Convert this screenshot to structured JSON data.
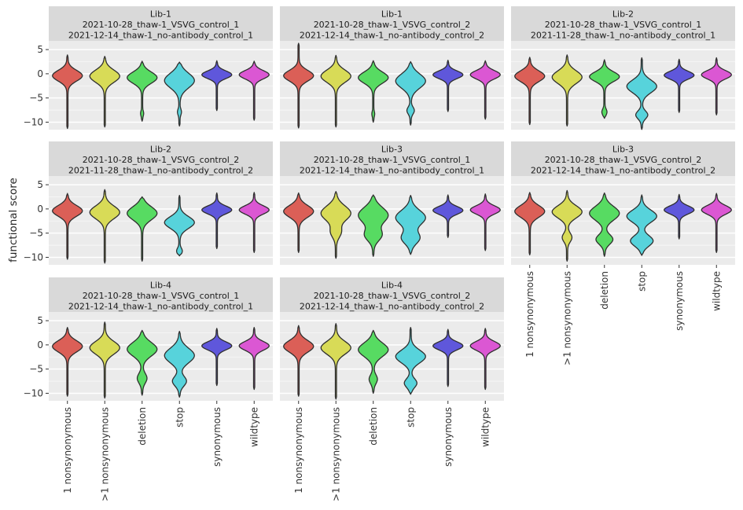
{
  "figure": {
    "ylabel": "functional score"
  },
  "chart_data": {
    "type": "violin",
    "title": "",
    "ylabel": "functional score",
    "xlabel": "",
    "categories": [
      "1 nonsynonymous",
      ">1 nonsynonymous",
      "deletion",
      "stop",
      "synonymous",
      "wildtype"
    ],
    "category_colors": [
      "#db5f57",
      "#d8db57",
      "#57db62",
      "#57d3db",
      "#5f57db",
      "#db57d3"
    ],
    "violin_outline_color": "#2f2f2f",
    "panel_bg": "#ebebeb",
    "strip_bg": "#d9d9d9",
    "grid_color": "#ffffff",
    "yticks": [
      5,
      0,
      -5,
      -10
    ],
    "ytick_labels": [
      "5",
      "0",
      "−5",
      "−10"
    ],
    "yticks_minor": [
      2.5,
      -2.5,
      -7.5
    ],
    "ylim": [
      -11.55,
      6.8
    ],
    "grid_rows": 3,
    "grid_cols": 3,
    "legend": "none",
    "panels": [
      {
        "row": 0,
        "col": 0,
        "strip_lines": [
          "Lib-1",
          "2021-10-28_thaw-1_VSVG_control_1",
          "2021-12-14_thaw-1_no-antibody_control_1"
        ],
        "violins": [
          {
            "category": "1 nonsynonymous",
            "mode": -0.4,
            "spread": 1.1,
            "max": 3.9,
            "min": -11.3,
            "bulge": null
          },
          {
            "category": ">1 nonsynonymous",
            "mode": -0.5,
            "spread": 1.25,
            "max": 3.6,
            "min": -11.0,
            "bulge": null
          },
          {
            "category": "deletion",
            "mode": -0.8,
            "spread": 1.15,
            "max": 2.6,
            "min": -9.8,
            "bulge": {
              "at": -8.2,
              "spread": 0.5,
              "weight": 0.07
            }
          },
          {
            "category": "stop",
            "mode": -1.4,
            "spread": 1.5,
            "max": 2.4,
            "min": -10.8,
            "bulge": {
              "at": -7.9,
              "spread": 0.6,
              "weight": 0.1
            }
          },
          {
            "category": "synonymous",
            "mode": -0.2,
            "spread": 0.78,
            "max": 2.7,
            "min": -7.6,
            "bulge": null
          },
          {
            "category": "wildtype",
            "mode": -0.2,
            "spread": 0.85,
            "max": 2.6,
            "min": -9.6,
            "bulge": null
          }
        ]
      },
      {
        "row": 0,
        "col": 1,
        "strip_lines": [
          "Lib-1",
          "2021-10-28_thaw-1_VSVG_control_2",
          "2021-12-14_thaw-1_no-antibody_control_2"
        ],
        "violins": [
          {
            "category": "1 nonsynonymous",
            "mode": -0.4,
            "spread": 1.1,
            "max": 6.3,
            "min": -11.2,
            "bulge": null
          },
          {
            "category": ">1 nonsynonymous",
            "mode": -0.5,
            "spread": 1.25,
            "max": 3.8,
            "min": -11.0,
            "bulge": null
          },
          {
            "category": "deletion",
            "mode": -0.8,
            "spread": 1.15,
            "max": 2.7,
            "min": -10.0,
            "bulge": {
              "at": -8.3,
              "spread": 0.5,
              "weight": 0.06
            }
          },
          {
            "category": "stop",
            "mode": -1.5,
            "spread": 1.45,
            "max": 2.5,
            "min": -10.6,
            "bulge": {
              "at": -7.6,
              "spread": 0.7,
              "weight": 0.22
            }
          },
          {
            "category": "synonymous",
            "mode": -0.2,
            "spread": 0.78,
            "max": 2.8,
            "min": -7.8,
            "bulge": null
          },
          {
            "category": "wildtype",
            "mode": -0.2,
            "spread": 0.85,
            "max": 2.7,
            "min": -9.4,
            "bulge": null
          }
        ]
      },
      {
        "row": 0,
        "col": 2,
        "strip_lines": [
          "Lib-2",
          "2021-10-28_thaw-1_VSVG_control_1",
          "2021-11-28_thaw-1_no-antibody_control_1"
        ],
        "violins": [
          {
            "category": "1 nonsynonymous",
            "mode": -0.5,
            "spread": 1.1,
            "max": 3.4,
            "min": -10.5,
            "bulge": null
          },
          {
            "category": ">1 nonsynonymous",
            "mode": -0.7,
            "spread": 1.3,
            "max": 3.9,
            "min": -10.8,
            "bulge": null
          },
          {
            "category": "deletion",
            "mode": -0.6,
            "spread": 1.0,
            "max": 2.9,
            "min": -9.2,
            "bulge": {
              "at": -7.9,
              "spread": 0.6,
              "weight": 0.14
            }
          },
          {
            "category": "stop",
            "mode": -2.6,
            "spread": 1.3,
            "max": 3.3,
            "min": -11.5,
            "bulge": {
              "at": -8.5,
              "spread": 0.8,
              "weight": 0.38
            }
          },
          {
            "category": "synonymous",
            "mode": -0.3,
            "spread": 0.8,
            "max": 3.0,
            "min": -8.0,
            "bulge": null
          },
          {
            "category": "wildtype",
            "mode": -0.2,
            "spread": 0.85,
            "max": 3.3,
            "min": -8.5,
            "bulge": null
          }
        ]
      },
      {
        "row": 1,
        "col": 0,
        "strip_lines": [
          "Lib-2",
          "2021-10-28_thaw-1_VSVG_control_2",
          "2021-11-28_thaw-1_no-antibody_control_2"
        ],
        "violins": [
          {
            "category": "1 nonsynonymous",
            "mode": -0.4,
            "spread": 1.1,
            "max": 3.2,
            "min": -10.4,
            "bulge": null
          },
          {
            "category": ">1 nonsynonymous",
            "mode": -0.7,
            "spread": 1.3,
            "max": 4.0,
            "min": -11.2,
            "bulge": null
          },
          {
            "category": "deletion",
            "mode": -0.9,
            "spread": 1.35,
            "max": 2.5,
            "min": -10.8,
            "bulge": null
          },
          {
            "category": "stop",
            "mode": -2.8,
            "spread": 1.2,
            "max": 2.8,
            "min": -9.7,
            "bulge": {
              "at": -8.7,
              "spread": 0.6,
              "weight": 0.16
            }
          },
          {
            "category": "synonymous",
            "mode": -0.2,
            "spread": 0.8,
            "max": 3.3,
            "min": -8.2,
            "bulge": null
          },
          {
            "category": "wildtype",
            "mode": -0.2,
            "spread": 0.85,
            "max": 3.4,
            "min": -9.0,
            "bulge": null
          }
        ]
      },
      {
        "row": 1,
        "col": 1,
        "strip_lines": [
          "Lib-3",
          "2021-10-28_thaw-1_VSVG_control_1",
          "2021-12-14_thaw-1_no-antibody_control_1"
        ],
        "violins": [
          {
            "category": "1 nonsynonymous",
            "mode": -0.5,
            "spread": 1.2,
            "max": 3.3,
            "min": -9.0,
            "bulge": null
          },
          {
            "category": ">1 nonsynonymous",
            "mode": -0.9,
            "spread": 1.5,
            "max": 3.6,
            "min": -10.2,
            "bulge": {
              "at": -4.8,
              "spread": 1.1,
              "weight": 0.32
            }
          },
          {
            "category": "deletion",
            "mode": -1.3,
            "spread": 1.6,
            "max": 2.9,
            "min": -9.8,
            "bulge": {
              "at": -5.4,
              "spread": 1.2,
              "weight": 0.55
            }
          },
          {
            "category": "stop",
            "mode": -1.8,
            "spread": 1.5,
            "max": 2.8,
            "min": -9.4,
            "bulge": {
              "at": -6.0,
              "spread": 1.2,
              "weight": 0.6
            }
          },
          {
            "category": "synonymous",
            "mode": -0.3,
            "spread": 0.8,
            "max": 2.9,
            "min": -5.9,
            "bulge": null
          },
          {
            "category": "wildtype",
            "mode": -0.2,
            "spread": 0.85,
            "max": 3.1,
            "min": -8.6,
            "bulge": null
          }
        ]
      },
      {
        "row": 1,
        "col": 2,
        "strip_lines": [
          "Lib-3",
          "2021-10-28_thaw-1_VSVG_control_2",
          "2021-12-14_thaw-1_no-antibody_control_2"
        ],
        "violins": [
          {
            "category": "1 nonsynonymous",
            "mode": -0.5,
            "spread": 1.2,
            "max": 3.4,
            "min": -9.5,
            "bulge": null
          },
          {
            "category": ">1 nonsynonymous",
            "mode": -0.6,
            "spread": 1.25,
            "max": 3.8,
            "min": -10.8,
            "bulge": {
              "at": -5.9,
              "spread": 0.9,
              "weight": 0.3
            }
          },
          {
            "category": "deletion",
            "mode": -0.9,
            "spread": 1.4,
            "max": 3.3,
            "min": -9.8,
            "bulge": {
              "at": -6.3,
              "spread": 1.0,
              "weight": 0.55
            }
          },
          {
            "category": "stop",
            "mode": -1.5,
            "spread": 1.25,
            "max": 2.9,
            "min": -9.6,
            "bulge": {
              "at": -6.6,
              "spread": 1.1,
              "weight": 0.75
            }
          },
          {
            "category": "synonymous",
            "mode": -0.2,
            "spread": 0.82,
            "max": 3.0,
            "min": -6.2,
            "bulge": null
          },
          {
            "category": "wildtype",
            "mode": -0.2,
            "spread": 0.9,
            "max": 3.2,
            "min": -9.0,
            "bulge": null
          }
        ]
      },
      {
        "row": 2,
        "col": 0,
        "strip_lines": [
          "Lib-4",
          "2021-10-28_thaw-1_VSVG_control_1",
          "2021-12-14_thaw-1_no-antibody_control_1"
        ],
        "violins": [
          {
            "category": "1 nonsynonymous",
            "mode": -0.3,
            "spread": 1.15,
            "max": 3.6,
            "min": -10.6,
            "bulge": null
          },
          {
            "category": ">1 nonsynonymous",
            "mode": -0.6,
            "spread": 1.3,
            "max": 4.7,
            "min": -11.0,
            "bulge": null
          },
          {
            "category": "deletion",
            "mode": -0.9,
            "spread": 1.4,
            "max": 3.0,
            "min": -10.4,
            "bulge": {
              "at": -6.9,
              "spread": 1.0,
              "weight": 0.3
            }
          },
          {
            "category": "stop",
            "mode": -2.2,
            "spread": 1.5,
            "max": 2.8,
            "min": -10.8,
            "bulge": {
              "at": -7.5,
              "spread": 1.0,
              "weight": 0.45
            }
          },
          {
            "category": "synonymous",
            "mode": -0.2,
            "spread": 0.82,
            "max": 3.4,
            "min": -8.4,
            "bulge": null
          },
          {
            "category": "wildtype",
            "mode": -0.2,
            "spread": 0.9,
            "max": 3.6,
            "min": -9.2,
            "bulge": null
          }
        ]
      },
      {
        "row": 2,
        "col": 1,
        "strip_lines": [
          "Lib-4",
          "2021-10-28_thaw-1_VSVG_control_2",
          "2021-12-14_thaw-1_no-antibody_control_2"
        ],
        "violins": [
          {
            "category": "1 nonsynonymous",
            "mode": -0.3,
            "spread": 1.2,
            "max": 4.0,
            "min": -10.6,
            "bulge": null
          },
          {
            "category": ">1 nonsynonymous",
            "mode": -0.6,
            "spread": 1.3,
            "max": 4.4,
            "min": -11.2,
            "bulge": null
          },
          {
            "category": "deletion",
            "mode": -1.0,
            "spread": 1.4,
            "max": 3.0,
            "min": -10.0,
            "bulge": {
              "at": -7.1,
              "spread": 0.9,
              "weight": 0.25
            }
          },
          {
            "category": "stop",
            "mode": -2.4,
            "spread": 1.3,
            "max": 3.6,
            "min": -10.2,
            "bulge": {
              "at": -7.9,
              "spread": 0.9,
              "weight": 0.4
            }
          },
          {
            "category": "synonymous",
            "mode": -0.2,
            "spread": 0.82,
            "max": 3.2,
            "min": -8.6,
            "bulge": null
          },
          {
            "category": "wildtype",
            "mode": -0.2,
            "spread": 0.9,
            "max": 3.4,
            "min": -9.2,
            "bulge": null
          }
        ]
      }
    ]
  }
}
